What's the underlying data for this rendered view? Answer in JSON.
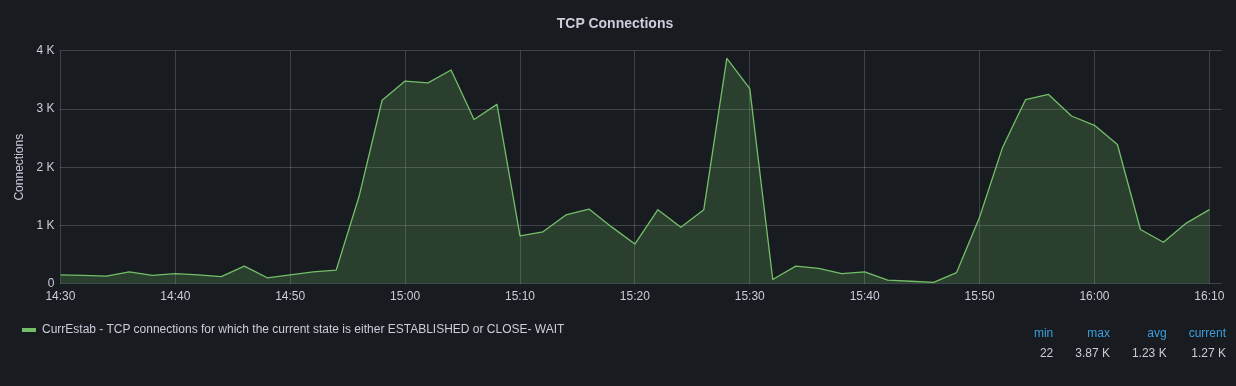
{
  "chart_data": {
    "type": "area",
    "title": "TCP Connections",
    "ylabel": "Connections",
    "x": [
      14.5,
      14.5333,
      14.5667,
      14.6,
      14.6333,
      14.6667,
      14.7,
      14.7333,
      14.7667,
      14.8,
      14.8333,
      14.8667,
      14.9,
      14.9333,
      14.9667,
      15,
      15.0333,
      15.0667,
      15.1,
      15.1333,
      15.1667,
      15.2,
      15.2333,
      15.2667,
      15.3,
      15.3333,
      15.3667,
      15.4,
      15.4333,
      15.4667,
      15.5,
      15.5333,
      15.5667,
      15.6,
      15.6333,
      15.6667,
      15.7,
      15.7333,
      15.7667,
      15.8,
      15.8333,
      15.8667,
      15.9,
      15.9333,
      15.9667,
      16,
      16.0333,
      16.0667,
      16.1,
      16.1333,
      16.1667
    ],
    "series": [
      {
        "name": "CurrEstab - TCP connections for which the current state is either ESTABLISHED or CLOSE- WAIT",
        "color": "#73bf69",
        "values": [
          150,
          140,
          130,
          200,
          140,
          170,
          150,
          120,
          300,
          100,
          150,
          200,
          230,
          1500,
          3150,
          3480,
          3450,
          3670,
          2820,
          3080,
          820,
          890,
          1180,
          1280,
          970,
          680,
          1270,
          970,
          1270,
          3870,
          3350,
          70,
          300,
          260,
          170,
          200,
          60,
          40,
          22,
          190,
          1140,
          2340,
          3160,
          3250,
          2880,
          2720,
          2390,
          930,
          710,
          1040,
          1270
        ]
      }
    ],
    "xlim": [
      14.5,
      16.185
    ],
    "xticks": [
      {
        "value": 14.5,
        "label": "14:30"
      },
      {
        "value": 14.6667,
        "label": "14:40"
      },
      {
        "value": 14.8333,
        "label": "14:50"
      },
      {
        "value": 15,
        "label": "15:00"
      },
      {
        "value": 15.1667,
        "label": "15:10"
      },
      {
        "value": 15.3333,
        "label": "15:20"
      },
      {
        "value": 15.5,
        "label": "15:30"
      },
      {
        "value": 15.6667,
        "label": "15:40"
      },
      {
        "value": 15.8333,
        "label": "15:50"
      },
      {
        "value": 16,
        "label": "16:00"
      },
      {
        "value": 16.1667,
        "label": "16:10"
      }
    ],
    "ylim": [
      0,
      4000
    ],
    "yticks": [
      0,
      {
        "value": 1000,
        "label": "1 K"
      },
      {
        "value": 2000,
        "label": "2 K"
      },
      {
        "value": 3000,
        "label": "3 K"
      },
      {
        "value": 4000,
        "label": "4 K"
      }
    ],
    "grid": true,
    "legend": "bottom left",
    "marker": "none",
    "line_style": "solid",
    "annotations": [
      "min",
      "max",
      "avg",
      "current",
      "22",
      "3.87 K",
      "1.23 K",
      "1.27 K"
    ]
  }
}
